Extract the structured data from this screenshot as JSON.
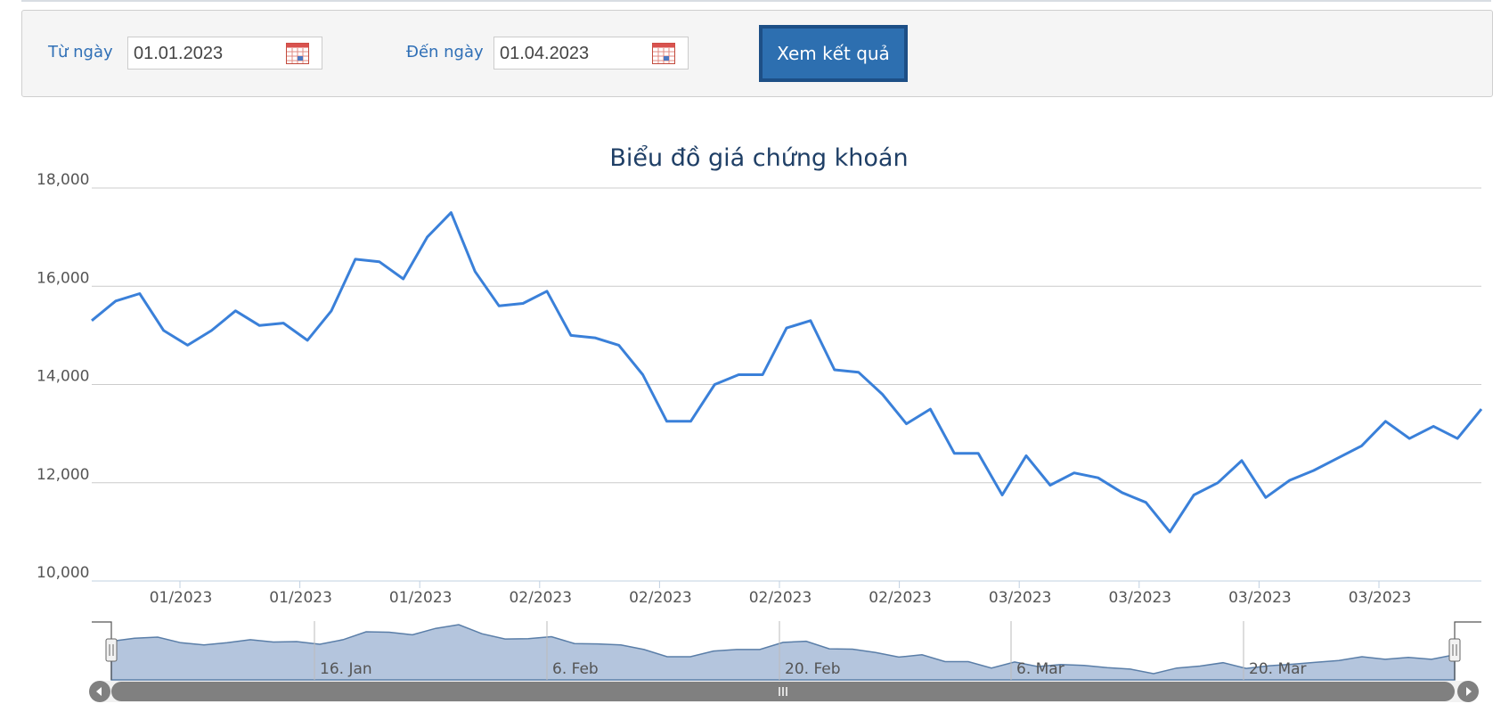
{
  "filters": {
    "from_label": "Từ ngày",
    "from_value": "01.01.2023",
    "to_label": "Đến ngày",
    "to_value": "01.04.2023",
    "submit_label": "Xem kết quả",
    "calendar_icon": "calendar-icon"
  },
  "colors": {
    "series": "#3a80d9",
    "navigator_fill": "#b4c5dd",
    "navigator_line": "#5a7ea8",
    "scrollbar": "#808080",
    "title": "#1f3f66",
    "label_blue": "#2f6fb6",
    "button": "#2d6fb0"
  },
  "chart_data": {
    "type": "line",
    "title": "Biểu đồ giá chứng khoán",
    "xlabel": "",
    "ylabel": "",
    "ylim": [
      10000,
      18000
    ],
    "y_ticks": [
      "18,000",
      "16,000",
      "14,000",
      "12,000",
      "10,000"
    ],
    "x_tick_labels": [
      "01/2023",
      "01/2023",
      "01/2023",
      "02/2023",
      "02/2023",
      "02/2023",
      "02/2023",
      "03/2023",
      "03/2023",
      "03/2023",
      "03/2023"
    ],
    "grid": true,
    "legend": "none",
    "series": [
      {
        "values": [
          15300,
          15700,
          15850,
          15100,
          14800,
          15100,
          15500,
          15200,
          15250,
          14900,
          15500,
          16550,
          16500,
          16150,
          17000,
          17500,
          16300,
          15600,
          15650,
          15900,
          15000,
          14950,
          14800,
          14200,
          13250,
          13250,
          14000,
          14200,
          14200,
          15150,
          15300,
          14300,
          14250,
          13800,
          13200,
          13500,
          12600,
          12600,
          11750,
          12550,
          11950,
          12200,
          12100,
          11800,
          11600,
          11000,
          11750,
          12000,
          12450,
          11700,
          12050,
          12250,
          12500,
          12750,
          13250,
          12900,
          13150,
          12900,
          13500
        ]
      }
    ],
    "navigator": {
      "labels": [
        "16. Jan",
        "6. Feb",
        "20. Feb",
        "6. Mar",
        "20. Mar"
      ]
    }
  }
}
